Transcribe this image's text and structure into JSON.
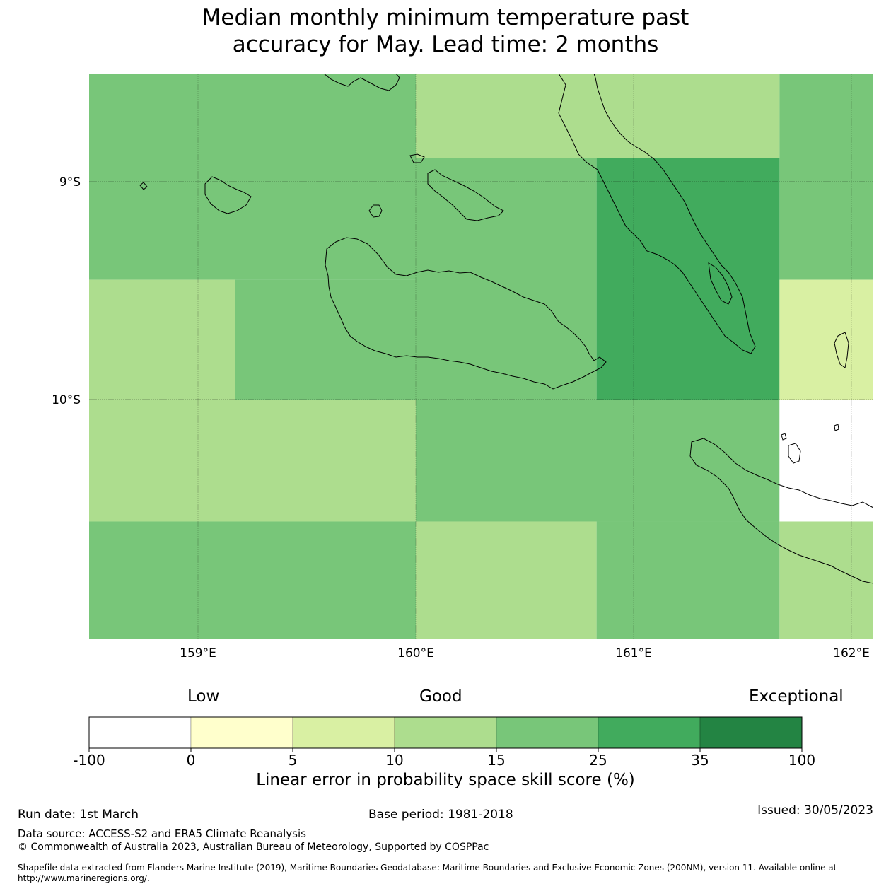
{
  "title": {
    "line1": "Median monthly minimum temperature past",
    "line2": "accuracy for May. Lead time: 2 months"
  },
  "map": {
    "lat_ticks": [
      "9°S",
      "10°S"
    ],
    "lon_ticks": [
      "159°E",
      "160°E",
      "161°E",
      "162°E"
    ],
    "extent": {
      "lon_min": 158.5,
      "lon_max": 162.1,
      "lat_min": -11.1,
      "lat_max": -8.5
    },
    "skill_grid": {
      "units": "%",
      "cells": [
        {
          "lon_from": 158.5,
          "lon_to": 160.0,
          "lat_from": -8.5,
          "lat_to": -9.45,
          "class": "15-25"
        },
        {
          "lon_from": 160.0,
          "lon_to": 161.67,
          "lat_from": -8.5,
          "lat_to": -8.89,
          "class": "10-15"
        },
        {
          "lon_from": 161.67,
          "lon_to": 162.1,
          "lat_from": -8.5,
          "lat_to": -9.45,
          "class": "15-25"
        },
        {
          "lon_from": 160.0,
          "lon_to": 160.83,
          "lat_from": -8.89,
          "lat_to": -10.0,
          "class": "15-25"
        },
        {
          "lon_from": 160.83,
          "lon_to": 161.67,
          "lat_from": -8.89,
          "lat_to": -10.0,
          "class": "25-35"
        },
        {
          "lon_from": 158.5,
          "lon_to": 159.17,
          "lat_from": -9.45,
          "lat_to": -10.0,
          "class": "10-15"
        },
        {
          "lon_from": 159.17,
          "lon_to": 160.0,
          "lat_from": -9.45,
          "lat_to": -10.0,
          "class": "15-25"
        },
        {
          "lon_from": 161.67,
          "lon_to": 162.1,
          "lat_from": -9.45,
          "lat_to": -10.0,
          "class": "5-10"
        },
        {
          "lon_from": 158.5,
          "lon_to": 160.0,
          "lat_from": -10.0,
          "lat_to": -10.56,
          "class": "10-15"
        },
        {
          "lon_from": 160.0,
          "lon_to": 161.67,
          "lat_from": -10.0,
          "lat_to": -10.56,
          "class": "15-25"
        },
        {
          "lon_from": 161.67,
          "lon_to": 162.1,
          "lat_from": -10.0,
          "lat_to": -10.56,
          "class": "no-data"
        },
        {
          "lon_from": 158.5,
          "lon_to": 160.0,
          "lat_from": -10.56,
          "lat_to": -11.1,
          "class": "15-25"
        },
        {
          "lon_from": 160.0,
          "lon_to": 160.83,
          "lat_from": -10.56,
          "lat_to": -11.1,
          "class": "10-15"
        },
        {
          "lon_from": 160.83,
          "lon_to": 161.67,
          "lat_from": -10.56,
          "lat_to": -11.1,
          "class": "15-25"
        },
        {
          "lon_from": 161.67,
          "lon_to": 162.1,
          "lat_from": -10.56,
          "lat_to": -11.1,
          "class": "10-15"
        }
      ]
    }
  },
  "colorbar": {
    "category_labels": {
      "low": "Low",
      "good": "Good",
      "exceptional": "Exceptional"
    },
    "tick_labels": [
      "-100",
      "0",
      "5",
      "10",
      "15",
      "25",
      "35",
      "100"
    ],
    "colors": [
      "#ffffff",
      "#ffffcc",
      "#d9f0a3",
      "#addd8e",
      "#78c679",
      "#41ab5d",
      "#238443"
    ],
    "title": "Linear error in probability space skill score (%)"
  },
  "footer": {
    "run_date": "Run date: 1st March",
    "base_period": "Base period: 1981-2018",
    "issued": "Issued: 30/05/2023",
    "data_source": "Data source: ACCESS-S2 and ERA5 Climate Reanalysis",
    "copyright": "© Commonwealth of Australia 2023, Australian Bureau of Meteorology, Supported by COSPPac",
    "shapefile_line1": "Shapefile data extracted from Flanders Marine Institute (2019), Maritime Boundaries Geodatabase: Maritime Boundaries and Exclusive Economic Zones (200NM), version 11. Available online at",
    "shapefile_line2": "http://www.marineregions.org/."
  }
}
